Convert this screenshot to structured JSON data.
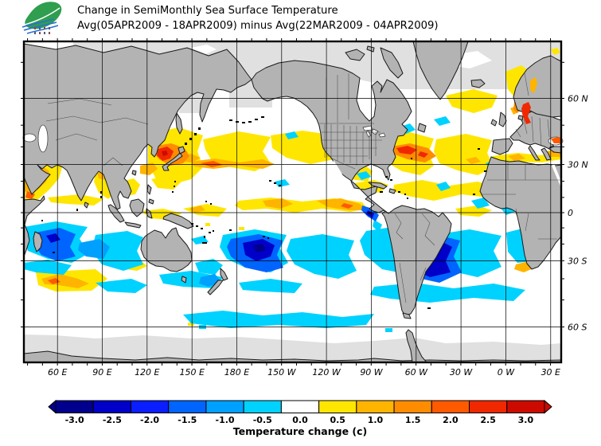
{
  "header": {
    "title_line1": "Change in SemiMonthly Sea Surface Temperature",
    "title_line2": "Avg(05APR2009 - 18APR2009) minus Avg(22MAR2009 - 04APR2009)"
  },
  "logo": {
    "name": "leaf-wave-logo",
    "leaf_color": "#2f9e4f",
    "wave_color": "#2b6fd4"
  },
  "map": {
    "x_axis_labels": [
      "60 E",
      "90 E",
      "120 E",
      "150 E",
      "180 E",
      "150 W",
      "120 W",
      "90 W",
      "60 W",
      "30 W",
      "0 W",
      "30 E"
    ],
    "y_axis_labels": [
      "60 N",
      "30 N",
      "0",
      "30 S",
      "60 S"
    ],
    "land_color": "#b3b3b3",
    "ice_color": "#e0e0e0",
    "ocean_color": "#ffffff",
    "grid_color": "#000000"
  },
  "colorbar": {
    "tick_labels": [
      "-3.0",
      "-2.5",
      "-2.0",
      "-1.5",
      "-1.0",
      "-0.5",
      "0.0",
      "0.5",
      "1.0",
      "1.5",
      "2.0",
      "2.5",
      "3.0"
    ],
    "segment_colors": [
      "#00008c",
      "#0000c8",
      "#0a1eff",
      "#0064ff",
      "#00a0ff",
      "#00d2ff",
      "#ffffff",
      "#ffe600",
      "#ffb400",
      "#ff8c00",
      "#ff5a00",
      "#f02800",
      "#cd0a00"
    ],
    "left_arrow_color": "#00008c",
    "right_arrow_color": "#cd0a00",
    "caption": "Temperature change (c)"
  }
}
